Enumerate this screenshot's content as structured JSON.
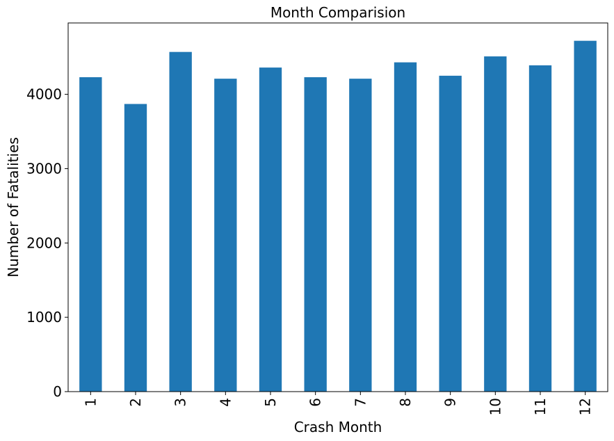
{
  "chart_data": {
    "type": "bar",
    "title": "Month Comparision",
    "xlabel": "Crash Month",
    "ylabel": "Number of Fatalities",
    "categories": [
      "1",
      "2",
      "3",
      "4",
      "5",
      "6",
      "7",
      "8",
      "9",
      "10",
      "11",
      "12"
    ],
    "values": [
      4230,
      3870,
      4570,
      4210,
      4360,
      4230,
      4210,
      4430,
      4250,
      4510,
      4390,
      4720
    ],
    "ylim": [
      0,
      4960
    ],
    "yticks": [
      0,
      1000,
      2000,
      3000,
      4000
    ],
    "ytick_labels": [
      "0",
      "1000",
      "2000",
      "3000",
      "4000"
    ],
    "grid": false,
    "legend": "none",
    "bar_color": "#1f77b4"
  }
}
